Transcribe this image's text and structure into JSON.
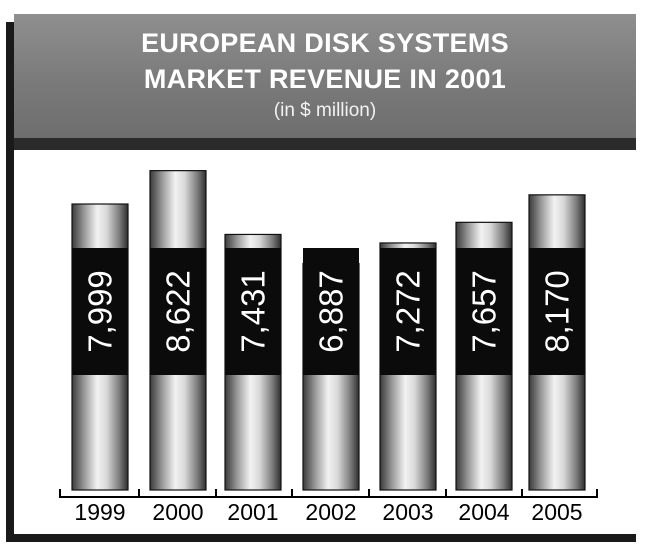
{
  "chart_data": {
    "type": "bar",
    "title_line1": "EUROPEAN DISK SYSTEMS",
    "title_line2": "MARKET REVENUE IN 2001",
    "subtitle": "(in $ million)",
    "categories": [
      "1999",
      "2000",
      "2001",
      "2002",
      "2003",
      "2004",
      "2005"
    ],
    "values": [
      7999,
      8622,
      7431,
      6887,
      7272,
      7657,
      8170
    ],
    "value_labels": [
      "7,999",
      "8,622",
      "7,431",
      "6,887",
      "7,272",
      "7,657",
      "8,170"
    ],
    "grid": false,
    "legend": "none"
  }
}
